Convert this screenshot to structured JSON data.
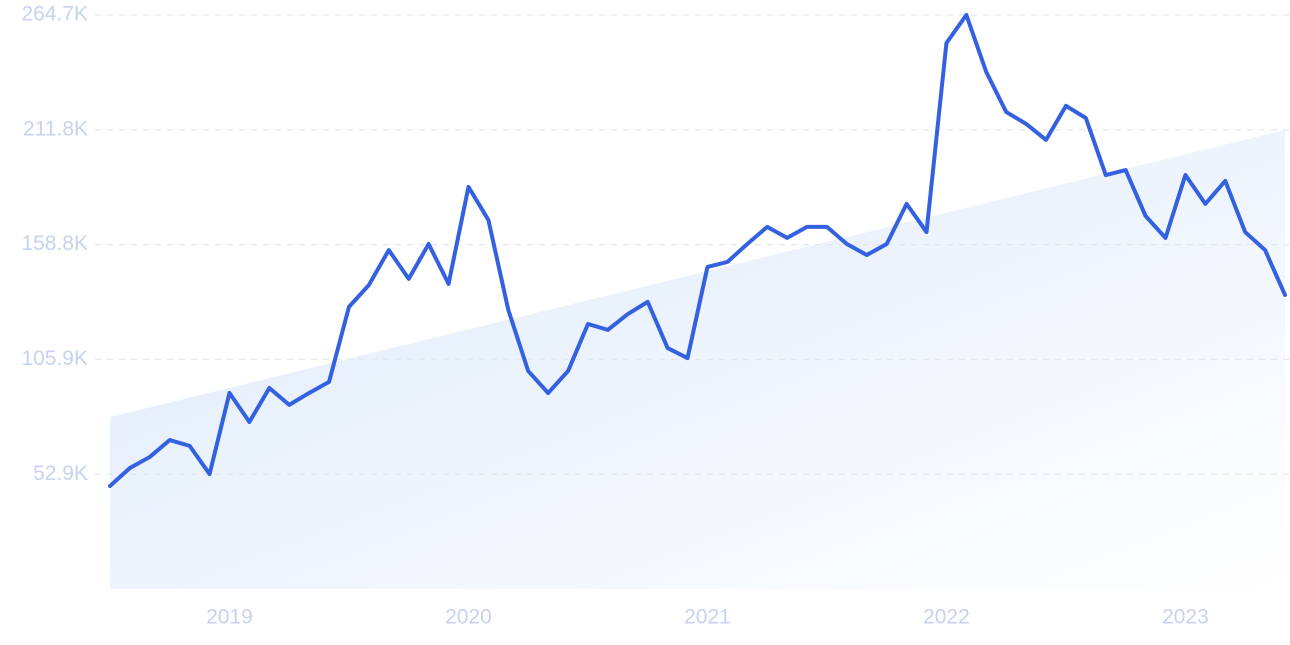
{
  "chart_data": {
    "type": "line",
    "categories": [
      null,
      null,
      null,
      null,
      null,
      null,
      "2019",
      null,
      null,
      null,
      null,
      null,
      null,
      null,
      null,
      null,
      null,
      null,
      "2020",
      null,
      null,
      null,
      null,
      null,
      null,
      null,
      null,
      null,
      null,
      null,
      "2021",
      null,
      null,
      null,
      null,
      null,
      null,
      null,
      null,
      null,
      null,
      null,
      "2022",
      null,
      null,
      null,
      null,
      null,
      null,
      null,
      null,
      null,
      null,
      null,
      "2023",
      null,
      null,
      null,
      null,
      null
    ],
    "series": [
      {
        "color": "#3361e0",
        "values": [
          47500,
          55800,
          60900,
          68700,
          66000,
          53000,
          90400,
          77000,
          92700,
          84900,
          90400,
          95500,
          130100,
          140200,
          156300,
          143000,
          159100,
          140700,
          185400,
          170200,
          128700,
          100500,
          90400,
          100500,
          122200,
          119500,
          126800,
          132400,
          111100,
          106500,
          148500,
          150800,
          159100,
          167000,
          161900,
          167000,
          167000,
          159100,
          154000,
          159100,
          177600,
          164600,
          251800,
          264700,
          238400,
          220000,
          214500,
          207100,
          222800,
          217200,
          190900,
          193200,
          172000,
          161900,
          190900,
          177600,
          188200,
          164600,
          156300,
          135600
        ]
      }
    ],
    "trend_values": [
      79300,
      211700
    ],
    "trend_color": "#dce9fb",
    "ylim": [
      0,
      264700
    ],
    "yticks": [
      {
        "value": 52900,
        "label": "52.9K"
      },
      {
        "value": 105900,
        "label": "105.9K"
      },
      {
        "value": 158800,
        "label": "158.8K"
      },
      {
        "value": 211800,
        "label": "211.8K"
      },
      {
        "value": 264700,
        "label": "264.7K"
      }
    ],
    "grid": true
  }
}
